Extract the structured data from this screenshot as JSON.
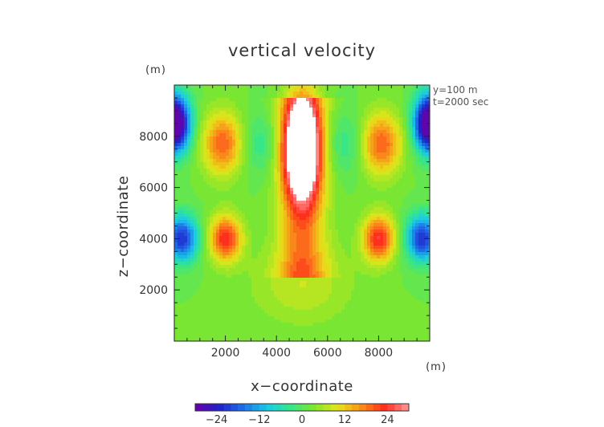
{
  "chart_data": {
    "type": "heatmap",
    "title": "vertical velocity",
    "xlabel": "x−coordinate",
    "ylabel": "z−coordinate",
    "x_unit": "(m)",
    "z_unit": "(m)",
    "xlim": [
      0,
      10000
    ],
    "zlim": [
      0,
      10000
    ],
    "x_ticks": [
      2000,
      4000,
      6000,
      8000
    ],
    "z_ticks": [
      2000,
      4000,
      6000,
      8000
    ],
    "x_tick_labels": [
      "2000",
      "4000",
      "6000",
      "8000"
    ],
    "z_tick_labels": [
      "2000",
      "4000",
      "6000",
      "8000"
    ],
    "info_lines": [
      "y=100  m",
      "t=2000  sec"
    ],
    "colorbar": {
      "range": [
        -30,
        30
      ],
      "ticks": [
        -24,
        -12,
        0,
        12,
        24
      ],
      "tick_labels": [
        "−24",
        "−12",
        "0",
        "12",
        "24"
      ],
      "stops": [
        "#6a00a8",
        "#2020c8",
        "#1e6ee8",
        "#19c8e8",
        "#35e68c",
        "#7ce62d",
        "#e6e619",
        "#fa8c19",
        "#ff2a1e",
        "#ff9a9a"
      ],
      "band_count": 30
    },
    "field_features": [
      {
        "feature": "central updraft core",
        "x": 5000,
        "z": 7500,
        "value": 40
      },
      {
        "feature": "updraft plume base",
        "x": 5000,
        "z": 2200,
        "value": 6
      },
      {
        "feature": "upper-left updraft lobe",
        "x": 1900,
        "z": 7700,
        "value": 18
      },
      {
        "feature": "upper-right updraft lobe",
        "x": 8100,
        "z": 7700,
        "value": 18
      },
      {
        "feature": "lower-left updraft lobe",
        "x": 2000,
        "z": 4000,
        "value": 22
      },
      {
        "feature": "lower-right updraft lobe",
        "x": 8000,
        "z": 4000,
        "value": 22
      },
      {
        "feature": "left edge downdraft",
        "x": 300,
        "z": 4000,
        "value": -24
      },
      {
        "feature": "right edge downdraft",
        "x": 9700,
        "z": 4000,
        "value": -24
      },
      {
        "feature": "upper-left corner downdraft",
        "x": 0,
        "z": 8500,
        "value": -40
      },
      {
        "feature": "upper-right corner downdraft",
        "x": 10000,
        "z": 8500,
        "value": -40
      },
      {
        "feature": "inner-left weak downdraft",
        "x": 3300,
        "z": 7700,
        "value": -6
      },
      {
        "feature": "inner-right weak downdraft",
        "x": 6700,
        "z": 7700,
        "value": -6
      }
    ]
  }
}
